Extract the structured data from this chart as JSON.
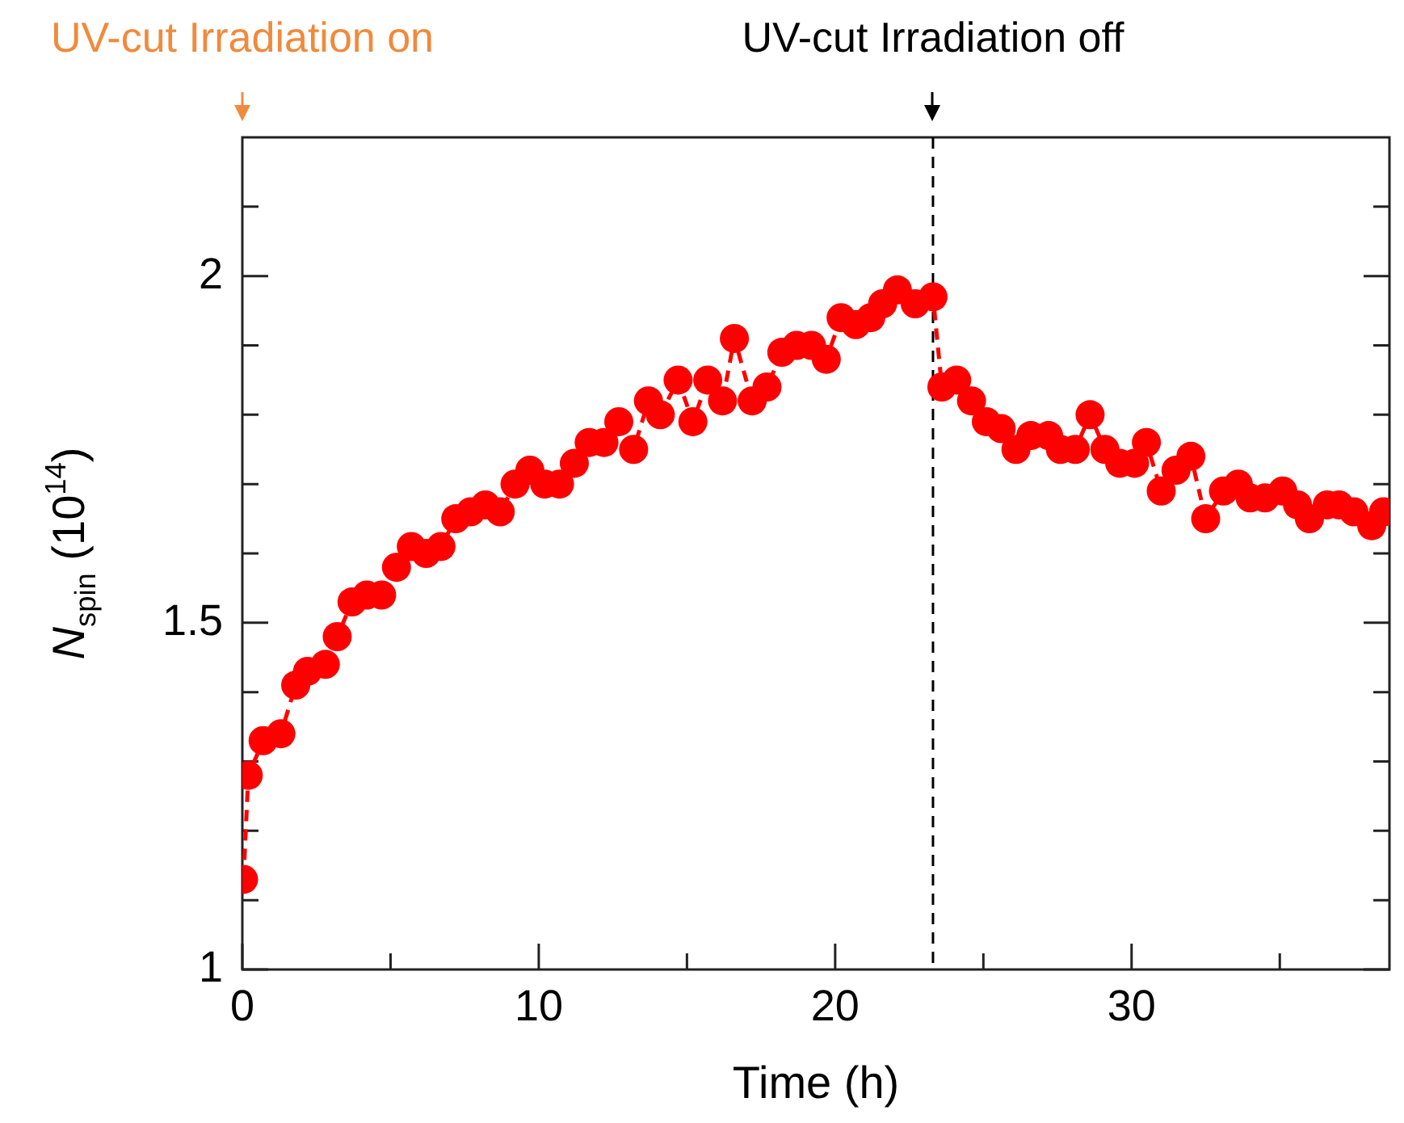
{
  "chart_data": {
    "type": "line",
    "xlabel": "Time (h)",
    "ylabel": "N$_{spin}$ (10$^{14}$)",
    "xlim": [
      0,
      38.7
    ],
    "ylim": [
      1,
      2.2
    ],
    "xticks": [
      0,
      {
        "value": 5,
        "label": null
      },
      10,
      {
        "value": 15,
        "label": null
      },
      20,
      {
        "value": 25,
        "label": null
      },
      30,
      {
        "value": 35,
        "label": null
      }
    ],
    "yticks": [
      1,
      {
        "value": 1.1,
        "label": null
      },
      {
        "value": 1.2,
        "label": null
      },
      {
        "value": 1.3,
        "label": null
      },
      {
        "value": 1.4,
        "label": null
      },
      1.5,
      {
        "value": 1.6,
        "label": null
      },
      {
        "value": 1.7,
        "label": null
      },
      {
        "value": 1.8,
        "label": null
      },
      {
        "value": 1.9,
        "label": null
      },
      2,
      {
        "value": 2.1,
        "label": null
      }
    ],
    "grid": false,
    "legend": false,
    "marker": "circle",
    "line_style": "dashed",
    "series": [
      {
        "color": "#ff0000",
        "x": [
          0.04,
          0.2,
          0.7,
          1.3,
          1.8,
          2.2,
          2.8,
          3.2,
          3.7,
          4.2,
          4.7,
          5.2,
          5.7,
          6.2,
          6.7,
          7.2,
          7.7,
          8.2,
          8.7,
          9.2,
          9.7,
          10.2,
          10.7,
          11.2,
          11.7,
          12.2,
          12.7,
          13.2,
          13.7,
          14.1,
          14.7,
          15.2,
          15.7,
          16.2,
          16.6,
          17.2,
          17.7,
          18.2,
          18.7,
          19.2,
          19.7,
          20.2,
          20.7,
          21.2,
          21.6,
          22.1,
          22.7,
          23.3,
          23.6,
          24.1,
          24.6,
          25.1,
          25.6,
          26.1,
          26.6,
          27.2,
          27.6,
          28.1,
          28.6,
          29.1,
          29.6,
          30.1,
          30.5,
          31.0,
          31.5,
          32.0,
          32.5,
          33.1,
          33.6,
          34.0,
          34.5,
          35.1,
          35.6,
          36.0,
          36.6,
          37.0,
          37.5,
          38.1,
          38.5
        ],
        "values": [
          1.13,
          1.28,
          1.33,
          1.34,
          1.41,
          1.43,
          1.44,
          1.48,
          1.53,
          1.54,
          1.54,
          1.58,
          1.61,
          1.6,
          1.61,
          1.65,
          1.66,
          1.67,
          1.66,
          1.7,
          1.72,
          1.7,
          1.7,
          1.73,
          1.76,
          1.76,
          1.79,
          1.75,
          1.82,
          1.8,
          1.85,
          1.79,
          1.85,
          1.82,
          1.91,
          1.82,
          1.84,
          1.89,
          1.9,
          1.9,
          1.88,
          1.94,
          1.93,
          1.94,
          1.96,
          1.98,
          1.96,
          1.97,
          1.84,
          1.85,
          1.82,
          1.79,
          1.78,
          1.75,
          1.77,
          1.77,
          1.75,
          1.75,
          1.8,
          1.75,
          1.73,
          1.73,
          1.76,
          1.69,
          1.72,
          1.74,
          1.65,
          1.69,
          1.7,
          1.68,
          1.68,
          1.69,
          1.67,
          1.65,
          1.67,
          1.67,
          1.66,
          1.64,
          1.66
        ]
      }
    ],
    "ref_lines": [
      {
        "axis": "x",
        "value": 23.3,
        "label": "UV-cut Irradiation off",
        "color": "#000000",
        "line_style": "dashed"
      }
    ],
    "annotations": [
      {
        "text": "UV-cut Irradiation on",
        "x": 0
      }
    ]
  }
}
